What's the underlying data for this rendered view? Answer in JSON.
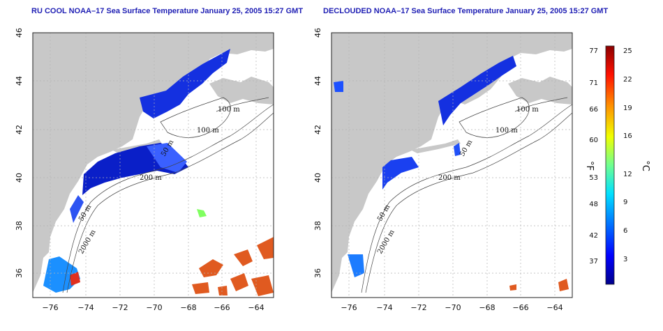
{
  "panels": [
    {
      "id": "left",
      "title": "RU COOL NOAA–17 Sea Surface Temperature January 25, 2005 15:27 GMT",
      "contour_labels": [
        "100 m",
        "100 m",
        "50 m",
        "200 m",
        "50 m",
        "2000 m"
      ]
    },
    {
      "id": "right",
      "title": "DECLOUDED NOAA–17 Sea Surface Temperature January 25, 2005 15:27 GMT",
      "contour_labels": [
        "100 m",
        "100 m",
        "50 m",
        "200 m",
        "50 m",
        "2000 m"
      ]
    }
  ],
  "axes": {
    "lon_ticks": [
      "−76",
      "−74",
      "−72",
      "−70",
      "−68",
      "−66",
      "−64"
    ],
    "lat_ticks": [
      "36",
      "38",
      "40",
      "42",
      "44",
      "46"
    ]
  },
  "colorbar": {
    "fahrenheit_ticks": [
      "77",
      "71",
      "66",
      "60",
      "53",
      "48",
      "42",
      "37"
    ],
    "celsius_ticks": [
      "25",
      "22",
      "19",
      "16",
      "12",
      "9",
      "6",
      "3"
    ],
    "fahrenheit_unit": "°F",
    "celsius_unit": "°C",
    "colors": [
      "#00008b",
      "#0000ff",
      "#0080ff",
      "#00ffff",
      "#80ff80",
      "#ffff00",
      "#ff8000",
      "#ff0000",
      "#8b0000"
    ]
  },
  "colors": {
    "land": "#c8c8c8",
    "ocean": "#ffffff",
    "title": "#1f1fb4",
    "grid": "#b4b4b4"
  }
}
